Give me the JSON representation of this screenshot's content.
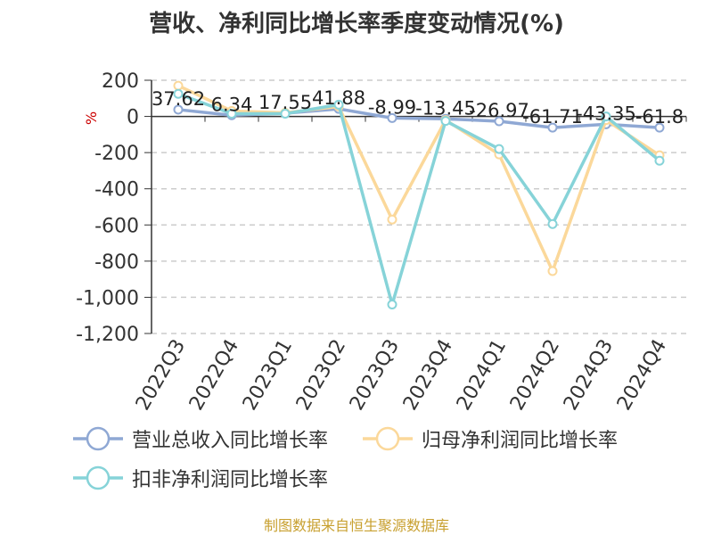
{
  "title": "营收、净利同比增长率季度变动情况(%)",
  "source": "制图数据来自恒生聚源数据库",
  "colors": {
    "revenue": "#8fa8d4",
    "net_profit": "#fbd89a",
    "deducted_profit": "#86d3d8",
    "axis": "#333333",
    "grid": "#cccccc",
    "unit": "#cc0000"
  },
  "chart_data": {
    "type": "line",
    "title": "营收、净利同比增长率季度变动情况(%)",
    "ylabel": "%",
    "ylim": [
      -1200,
      200
    ],
    "yticks": [
      200,
      0,
      -200,
      -400,
      -600,
      -800,
      -1000,
      -1200
    ],
    "ytick_labels": [
      "200",
      "0",
      "-200",
      "-400",
      "-600",
      "-800",
      "-1,000",
      "-1,200"
    ],
    "grid": true,
    "legend_position": "bottom",
    "categories": [
      "2022Q3",
      "2022Q4",
      "2023Q1",
      "2023Q2",
      "2023Q3",
      "2023Q4",
      "2024Q1",
      "2024Q2",
      "2024Q3",
      "2024Q4"
    ],
    "series": [
      {
        "name": "营业总收入同比增长率",
        "color_key": "revenue",
        "values": [
          37.62,
          6.34,
          17.55,
          41.88,
          -8.99,
          -13.45,
          -26.97,
          -61.71,
          -43.35,
          -61.8
        ],
        "labels": [
          "37.62",
          "6.34",
          "17.55",
          "41.88",
          "-8.99",
          "-13.45",
          "-26.97",
          "-61.71",
          "-43.35",
          "-61.8"
        ]
      },
      {
        "name": "归母净利润同比增长率",
        "color_key": "net_profit",
        "values": [
          170,
          30,
          20,
          55,
          -570,
          -20,
          -210,
          -855,
          -20,
          -215
        ]
      },
      {
        "name": "扣非净利润同比增长率",
        "color_key": "deducted_profit",
        "values": [
          125,
          15,
          15,
          65,
          -1040,
          -25,
          -180,
          -595,
          0,
          -245
        ]
      }
    ]
  }
}
